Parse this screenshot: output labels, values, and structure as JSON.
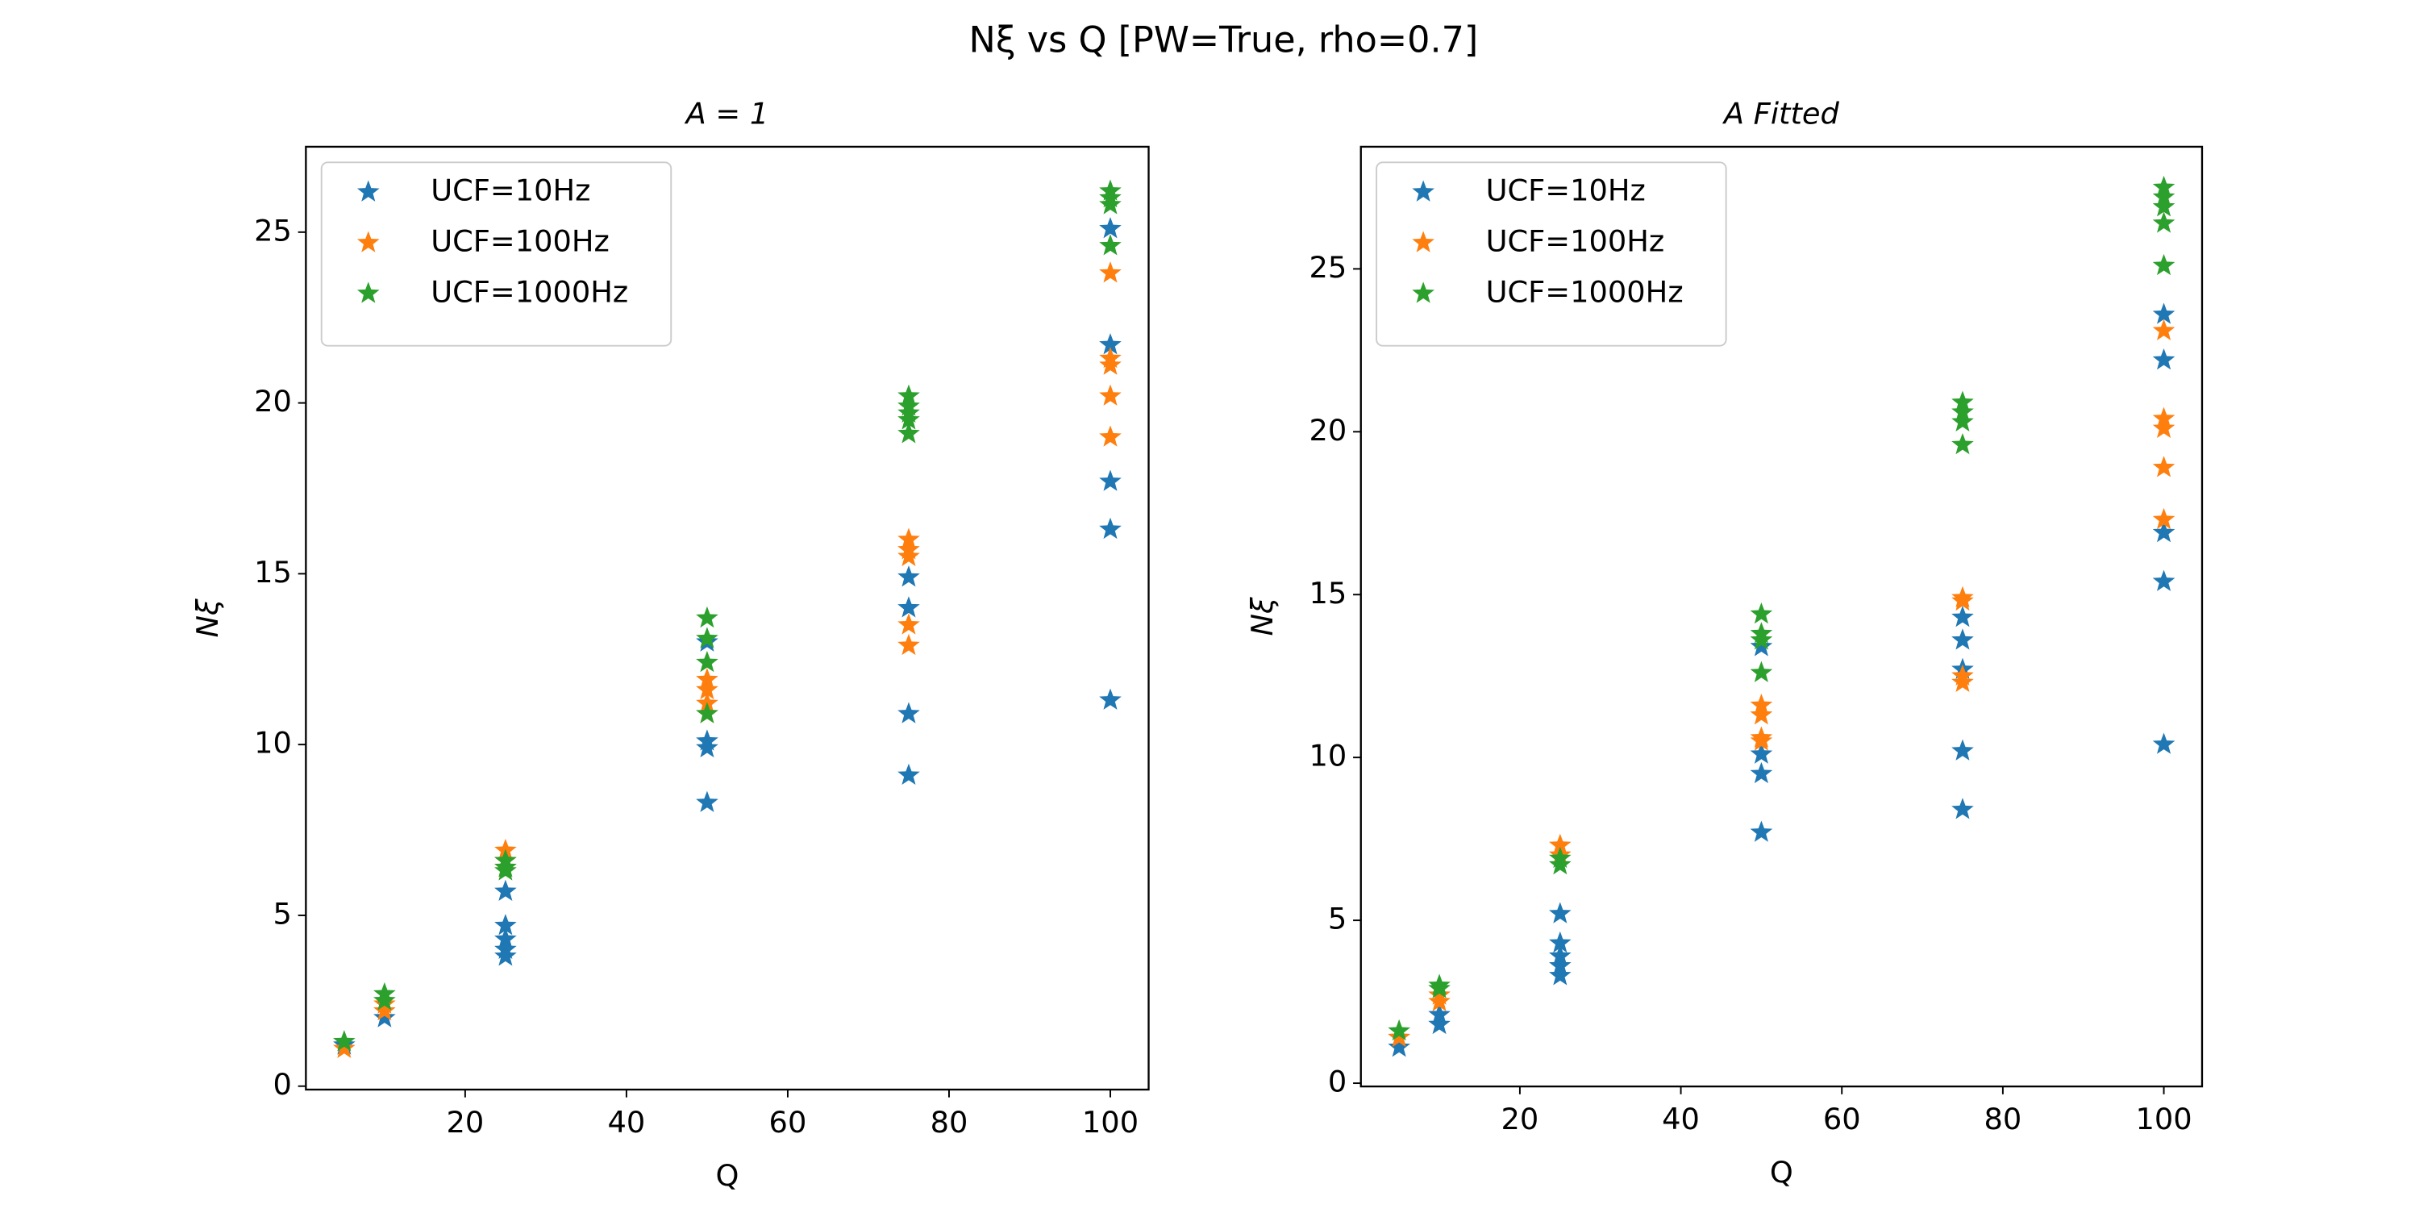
{
  "title": "Nξ vs Q [PW=True, rho=0.7]",
  "chart_data": [
    {
      "type": "scatter",
      "title": "A = 1",
      "x_label": "Q",
      "y_label": "Nξ",
      "xlim": [
        0.25,
        104.75
      ],
      "ylim": [
        -0.1,
        27.5
      ],
      "xticks": [
        20,
        40,
        60,
        80,
        100
      ],
      "yticks": [
        0,
        5,
        10,
        15,
        20,
        25
      ],
      "legend": "upper left",
      "marker": "star",
      "series": [
        {
          "name": "UCF=10Hz",
          "color": "#1f77b4",
          "x": [
            5,
            10,
            25,
            25,
            25,
            25,
            25,
            50,
            50,
            50,
            50,
            75,
            75,
            75,
            75,
            100,
            100,
            100,
            100,
            100
          ],
          "values": [
            1.2,
            2.0,
            5.7,
            4.7,
            4.3,
            4.0,
            3.8,
            13.0,
            10.1,
            9.9,
            8.3,
            14.9,
            14.0,
            10.9,
            9.1,
            25.1,
            21.7,
            17.7,
            16.3,
            11.3
          ]
        },
        {
          "name": "UCF=100Hz",
          "color": "#ff7f0e",
          "x": [
            5,
            10,
            10,
            25,
            25,
            25,
            50,
            50,
            50,
            50,
            75,
            75,
            75,
            75,
            75,
            100,
            100,
            100,
            100,
            100
          ],
          "values": [
            1.1,
            2.4,
            2.2,
            6.9,
            6.6,
            6.4,
            11.9,
            11.6,
            11.2,
            10.9,
            16.0,
            15.7,
            15.5,
            13.5,
            12.9,
            23.8,
            21.3,
            21.1,
            20.2,
            19.0
          ]
        },
        {
          "name": "UCF=1000Hz",
          "color": "#2ca02c",
          "x": [
            5,
            10,
            10,
            25,
            25,
            25,
            50,
            50,
            50,
            50,
            75,
            75,
            75,
            75,
            75,
            100,
            100,
            100,
            100
          ],
          "values": [
            1.3,
            2.7,
            2.5,
            6.6,
            6.4,
            6.3,
            13.7,
            13.1,
            12.4,
            10.9,
            20.2,
            19.9,
            19.7,
            19.5,
            19.1,
            26.2,
            26.0,
            25.8,
            24.6
          ]
        }
      ]
    },
    {
      "type": "scatter",
      "title": "A Fitted",
      "x_label": "Q",
      "y_label": "Nξ",
      "xlim": [
        0.25,
        104.75
      ],
      "ylim": [
        -0.1,
        28.75
      ],
      "xticks": [
        20,
        40,
        60,
        80,
        100
      ],
      "yticks": [
        0,
        5,
        10,
        15,
        20,
        25
      ],
      "legend": "upper left",
      "marker": "star",
      "series": [
        {
          "name": "UCF=10Hz",
          "color": "#1f77b4",
          "x": [
            5,
            5,
            10,
            10,
            25,
            25,
            25,
            25,
            25,
            50,
            50,
            50,
            50,
            75,
            75,
            75,
            75,
            75,
            100,
            100,
            100,
            100,
            100
          ],
          "values": [
            1.1,
            1.4,
            1.8,
            2.1,
            5.2,
            4.3,
            3.9,
            3.6,
            3.3,
            13.4,
            10.1,
            9.5,
            7.7,
            14.3,
            13.6,
            12.7,
            10.2,
            8.4,
            23.6,
            22.2,
            16.9,
            15.4,
            10.4
          ]
        },
        {
          "name": "UCF=100Hz",
          "color": "#ff7f0e",
          "x": [
            5,
            10,
            10,
            25,
            25,
            50,
            50,
            50,
            50,
            75,
            75,
            75,
            75,
            100,
            100,
            100,
            100,
            100
          ],
          "values": [
            1.4,
            2.7,
            2.5,
            7.3,
            7.0,
            11.6,
            11.3,
            10.6,
            10.5,
            14.9,
            14.8,
            12.5,
            12.3,
            23.1,
            20.4,
            20.1,
            18.9,
            17.3
          ]
        },
        {
          "name": "UCF=1000Hz",
          "color": "#2ca02c",
          "x": [
            5,
            10,
            10,
            25,
            25,
            50,
            50,
            50,
            50,
            75,
            75,
            75,
            75,
            100,
            100,
            100,
            100,
            100
          ],
          "values": [
            1.6,
            3.0,
            2.9,
            6.9,
            6.7,
            14.4,
            13.8,
            13.6,
            12.6,
            20.9,
            20.6,
            20.3,
            19.6,
            27.5,
            27.2,
            26.9,
            26.4,
            25.1
          ]
        }
      ]
    }
  ]
}
